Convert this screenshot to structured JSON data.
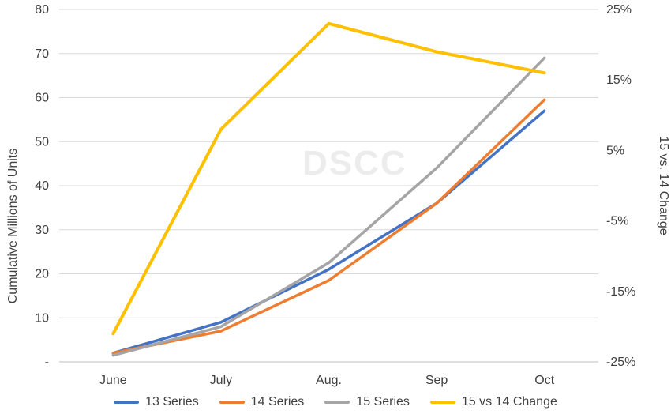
{
  "chart_data": {
    "type": "line",
    "categories": [
      "June",
      "July",
      "Aug.",
      "Sep",
      "Oct"
    ],
    "series": [
      {
        "name": "13 Series",
        "axis": "left",
        "color": "#4472C4",
        "values": [
          2,
          9,
          21,
          36,
          57
        ]
      },
      {
        "name": "14 Series",
        "axis": "left",
        "color": "#ED7D31",
        "values": [
          2,
          7,
          18.5,
          36,
          59.5
        ]
      },
      {
        "name": "15 Series",
        "axis": "left",
        "color": "#A5A5A5",
        "values": [
          1.5,
          8,
          22.5,
          44,
          69
        ]
      },
      {
        "name": "15 vs 14 Change",
        "axis": "right",
        "color": "#FFC000",
        "values": [
          -21,
          8,
          23,
          19,
          16
        ]
      }
    ],
    "left_axis": {
      "title": "Cumulative Millions of Units",
      "min": 0,
      "max": 80,
      "tick_step": 10,
      "zero_label": "-",
      "tick_labels": [
        "-",
        "10",
        "20",
        "30",
        "40",
        "50",
        "60",
        "70",
        "80"
      ]
    },
    "right_axis": {
      "title": "15 vs. 14 Change",
      "min": -25,
      "max": 25,
      "tick_step": 10,
      "format": "percent",
      "tick_labels": [
        "-25%",
        "-15%",
        "-5%",
        "5%",
        "15%",
        "25%"
      ]
    },
    "legend_position": "bottom",
    "grid": true,
    "watermark": "DSCC",
    "colors": {
      "grid_line": "#d9d9d9",
      "axis_line": "#bfbfbf",
      "tick_text": "#404040"
    }
  }
}
